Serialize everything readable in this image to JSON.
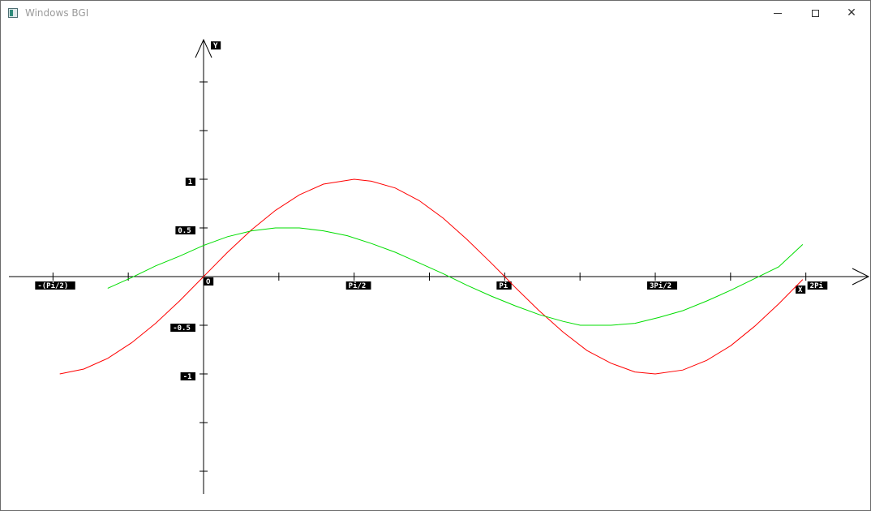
{
  "window": {
    "title": "Windows BGI",
    "icon": "app-window-icon",
    "buttons": [
      "minimize-icon",
      "maximize-icon",
      "close-icon"
    ]
  },
  "chart_data": {
    "type": "line",
    "x_axis_letter": "X",
    "y_axis_letter": "Y",
    "origin_label": "O",
    "xlim": [
      -1.5708,
      6.2832
    ],
    "ylim": [
      -2.1,
      2.1
    ],
    "x_tick_labels": [
      {
        "value": -1.5708,
        "text": "-(Pi/2)"
      },
      {
        "value": 1.5708,
        "text": "Pi/2"
      },
      {
        "value": 3.1416,
        "text": "Pi"
      },
      {
        "value": 4.7124,
        "text": "3Pi/2"
      },
      {
        "value": 6.2832,
        "text": "2Pi"
      }
    ],
    "y_tick_labels": [
      {
        "value": 1,
        "text": "1"
      },
      {
        "value": 0.5,
        "text": "0.5"
      },
      {
        "value": -0.5,
        "text": "-0.5"
      },
      {
        "value": -1,
        "text": "-1"
      }
    ],
    "series": [
      {
        "color": "#ff0000",
        "x": [
          -1.5,
          -1.25,
          -1.0,
          -0.75,
          -0.5,
          -0.25,
          0.0,
          0.25,
          0.5,
          0.75,
          1.0,
          1.25,
          1.5708,
          1.75,
          2.0,
          2.25,
          2.5,
          2.75,
          3.0,
          3.1416,
          3.25,
          3.5,
          3.75,
          4.0,
          4.25,
          4.5,
          4.7124,
          5.0,
          5.25,
          5.5,
          5.75,
          6.0,
          6.25
        ],
        "y": [
          -1.0,
          -0.95,
          -0.84,
          -0.68,
          -0.48,
          -0.25,
          0.0,
          0.25,
          0.48,
          0.68,
          0.84,
          0.95,
          1.0,
          0.98,
          0.91,
          0.78,
          0.6,
          0.38,
          0.14,
          0.0,
          -0.11,
          -0.35,
          -0.57,
          -0.76,
          -0.89,
          -0.98,
          -1.0,
          -0.96,
          -0.86,
          -0.71,
          -0.51,
          -0.28,
          -0.03
        ]
      },
      {
        "color": "#00dd00",
        "x": [
          -1.0,
          -0.75,
          -0.5,
          -0.25,
          0.0,
          0.25,
          0.5,
          0.75,
          1.0,
          1.25,
          1.5,
          1.75,
          2.0,
          2.25,
          2.5,
          2.75,
          3.0,
          3.25,
          3.5,
          3.75,
          3.93,
          4.25,
          4.5,
          4.75,
          5.0,
          5.25,
          5.5,
          5.75,
          6.0,
          6.25
        ],
        "y": [
          -0.12,
          -0.01,
          0.11,
          0.21,
          0.32,
          0.41,
          0.47,
          0.5,
          0.5,
          0.47,
          0.42,
          0.34,
          0.25,
          0.14,
          0.03,
          -0.09,
          -0.2,
          -0.3,
          -0.39,
          -0.46,
          -0.5,
          -0.5,
          -0.48,
          -0.42,
          -0.35,
          -0.25,
          -0.14,
          -0.02,
          0.1,
          0.33
        ]
      }
    ]
  }
}
